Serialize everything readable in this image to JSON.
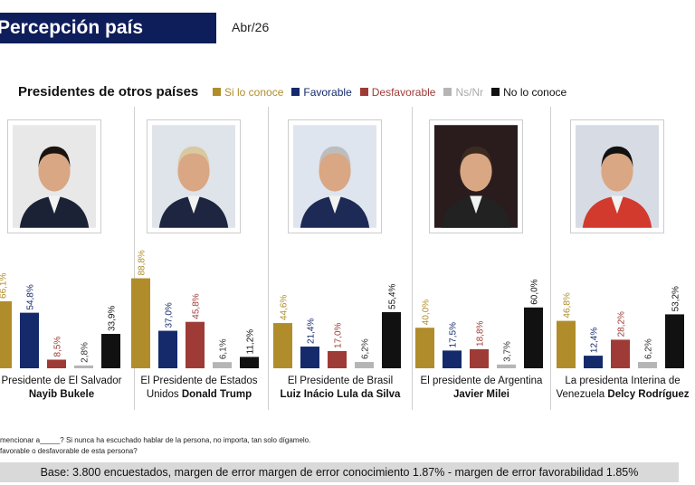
{
  "header": {
    "title": "Percepción país",
    "date": "Abr/26"
  },
  "section_title": "Presidentes de otros países",
  "chart_data": {
    "type": "bar",
    "series": [
      {
        "name": "Si lo conoce",
        "color": "#b08d2a",
        "values": [
          66.1,
          88.8,
          44.6,
          40.0,
          46.8
        ]
      },
      {
        "name": "Favorable",
        "color": "#142a6b",
        "values": [
          54.8,
          37.0,
          21.4,
          17.5,
          12.4
        ]
      },
      {
        "name": "Desfavorable",
        "color": "#9e3b37",
        "values": [
          8.5,
          45.8,
          17.0,
          18.8,
          28.2
        ]
      },
      {
        "name": "Ns/Nr",
        "color": "#b5b5b5",
        "values": [
          2.8,
          6.1,
          6.2,
          3.7,
          6.2
        ]
      },
      {
        "name": "No lo conoce",
        "color": "#111111",
        "values": [
          33.9,
          11.2,
          55.4,
          60.0,
          53.2
        ]
      }
    ],
    "categories": [
      {
        "pre": "Presidente de El Salvador",
        "name": "Nayib Bukele",
        "inline": false
      },
      {
        "pre": "El Presidente de Estados Unidos",
        "name": "Donald Trump",
        "inline": true,
        "line1": "El Presidente de Estados",
        "line2pre": "Unidos "
      },
      {
        "pre": "El Presidente de Brasil",
        "name": "Luiz Inácio Lula da Silva",
        "inline": false
      },
      {
        "pre": "El presidente de Argentina",
        "name": "Javier Milei",
        "inline": false
      },
      {
        "pre": "La presidenta Interina de Venezuela",
        "name": "Delcy Rodríguez",
        "inline": true,
        "line1": "La presidenta Interina de",
        "line2pre": "Venezuela "
      }
    ],
    "value_labels": [
      [
        "66,1%",
        "54,8%",
        "8,5%",
        "2,8%",
        "33,9%"
      ],
      [
        "88,8%",
        "37,0%",
        "45,8%",
        "6,1%",
        "11,2%"
      ],
      [
        "44,6%",
        "21,4%",
        "17,0%",
        "6,2%",
        "55,4%"
      ],
      [
        "40,0%",
        "17,5%",
        "18,8%",
        "3,7%",
        "60,0%"
      ],
      [
        "46,8%",
        "12,4%",
        "28,2%",
        "6,2%",
        "53,2%"
      ]
    ],
    "ylim": [
      0,
      100
    ]
  },
  "footnotes": [
    "mencionar a_____? Si nunca ha escuchado hablar de la persona, no importa, tan solo dígamelo.",
    "favorable o desfavorable de esta persona?"
  ],
  "base": "Base: 3.800 encuestados, margen de error margen de error conocimiento 1.87% - margen de error favorabilidad 1.85%"
}
